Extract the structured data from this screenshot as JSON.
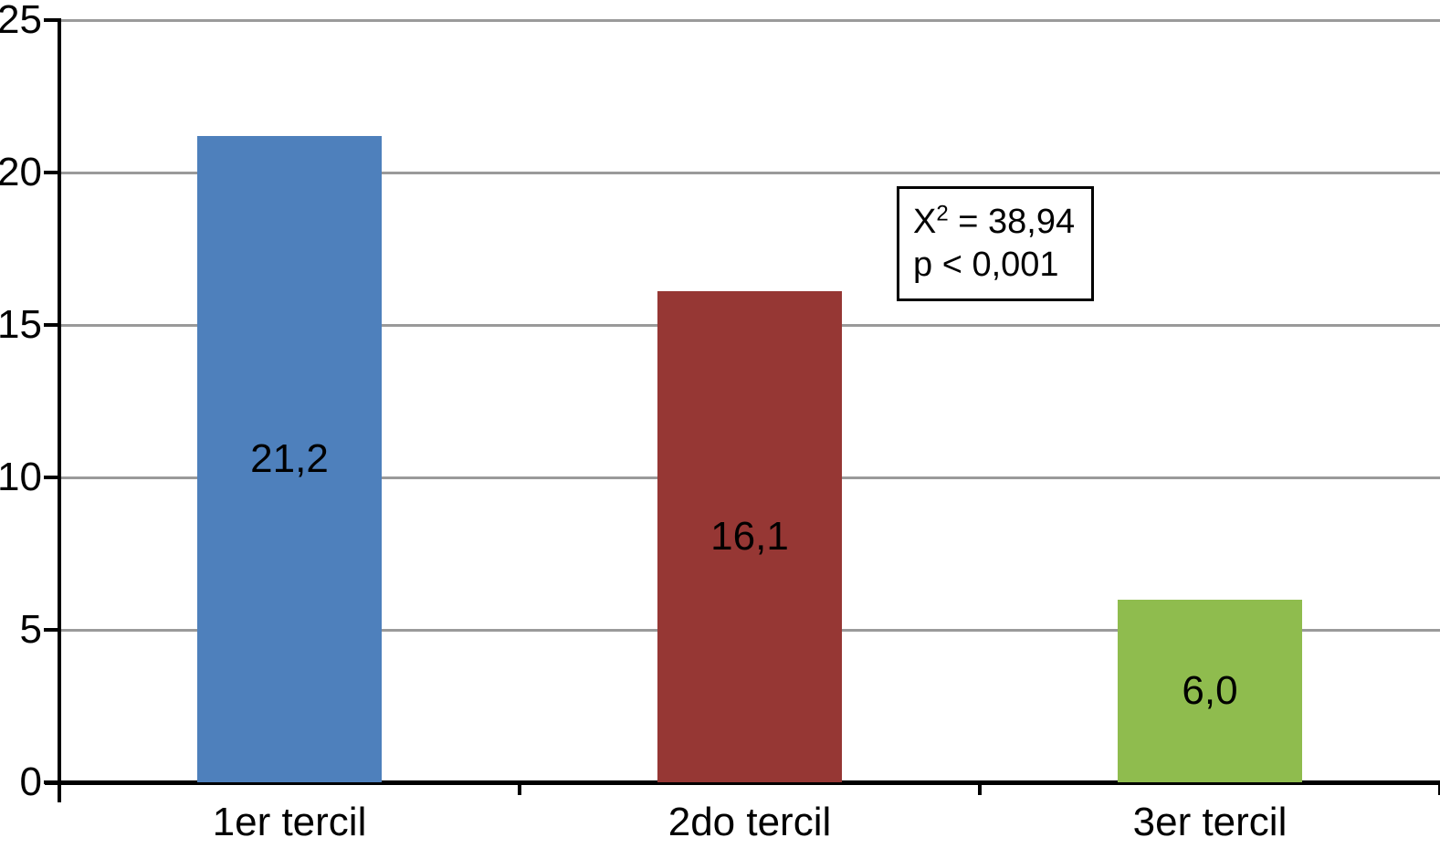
{
  "chart_data": {
    "type": "bar",
    "categories": [
      "1er tercil",
      "2do tercil",
      "3er tercil"
    ],
    "values": [
      21.2,
      16.1,
      6.0
    ],
    "value_labels": [
      "21,2",
      "16,1",
      "6,0"
    ],
    "bar_colors": [
      "#4e80bc",
      "#963734",
      "#8fbc4e"
    ],
    "ylim": [
      0,
      25
    ],
    "yticks": [
      0,
      5,
      10,
      15,
      20,
      25
    ],
    "ytick_labels": [
      "0",
      "5",
      "10",
      "15",
      "20",
      "25"
    ],
    "grid": true,
    "legend": "none",
    "annotation": {
      "chi_base": "X",
      "chi_sup": "2",
      "chi_rest": " = 38,94",
      "p_line": "p < 0,001"
    }
  },
  "colors": {
    "background": "#ffffff",
    "gridline": "#9a9a9a",
    "axis": "#000000",
    "text": "#000000",
    "annotation_border": "#000000"
  }
}
